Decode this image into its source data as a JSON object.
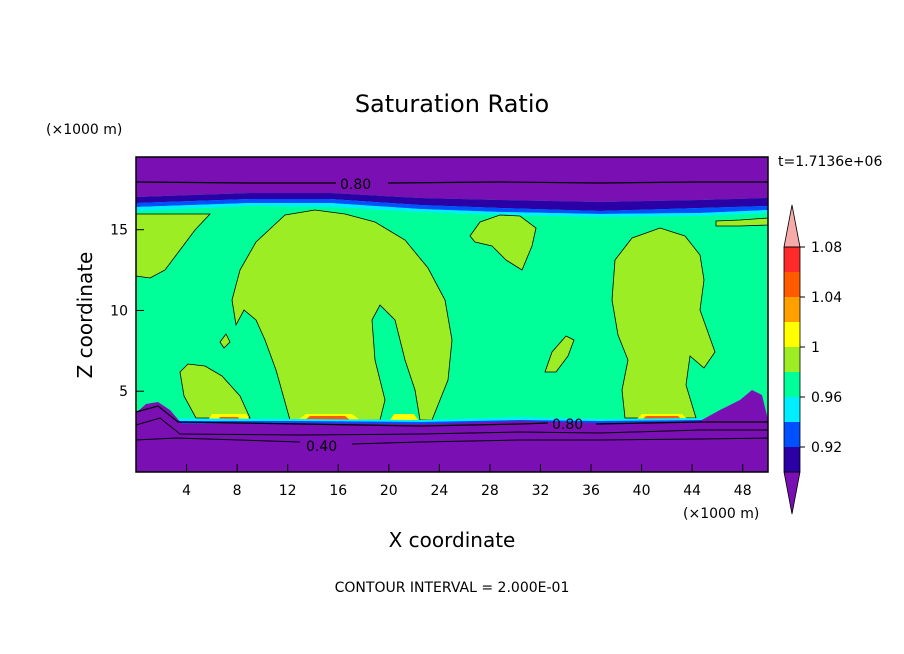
{
  "chart_data": {
    "type": "heatmap",
    "title": "Saturation Ratio",
    "xlabel": "X coordinate",
    "ylabel": "Z coordinate",
    "x_units": "(×1000 m)",
    "y_units": "(×1000 m)",
    "xlim": [
      0,
      50
    ],
    "ylim": [
      0,
      19.5
    ],
    "x_ticks": [
      4,
      8,
      12,
      16,
      20,
      24,
      28,
      32,
      36,
      40,
      44,
      48
    ],
    "y_ticks": [
      5,
      10,
      15
    ],
    "time_label": "t=1.7136e+06",
    "footer": "CONTOUR INTERVAL = 2.000E-01",
    "contour_labels": [
      "0.80",
      "0.80",
      "0.40"
    ],
    "colorbar": {
      "colors": [
        "#7a0fb4",
        "#2a00a6",
        "#0050ff",
        "#00eeff",
        "#00ff99",
        "#9ded24",
        "#ffff00",
        "#ffa000",
        "#ff5a00",
        "#ff2a2a",
        "#f7aaaa"
      ],
      "tick_labels": [
        "0.92",
        "0.96",
        "1",
        "1.04",
        "1.08"
      ]
    },
    "colors": {
      "below_080": "#7a0fb4",
      "band_092": "#2a00a6",
      "band_096": "#0050ff",
      "band_098": "#00eeff",
      "near_1": "#00ff99",
      "above_1": "#9ded24",
      "above_104": "#ffff00",
      "above_108": "#ff5a00"
    }
  }
}
